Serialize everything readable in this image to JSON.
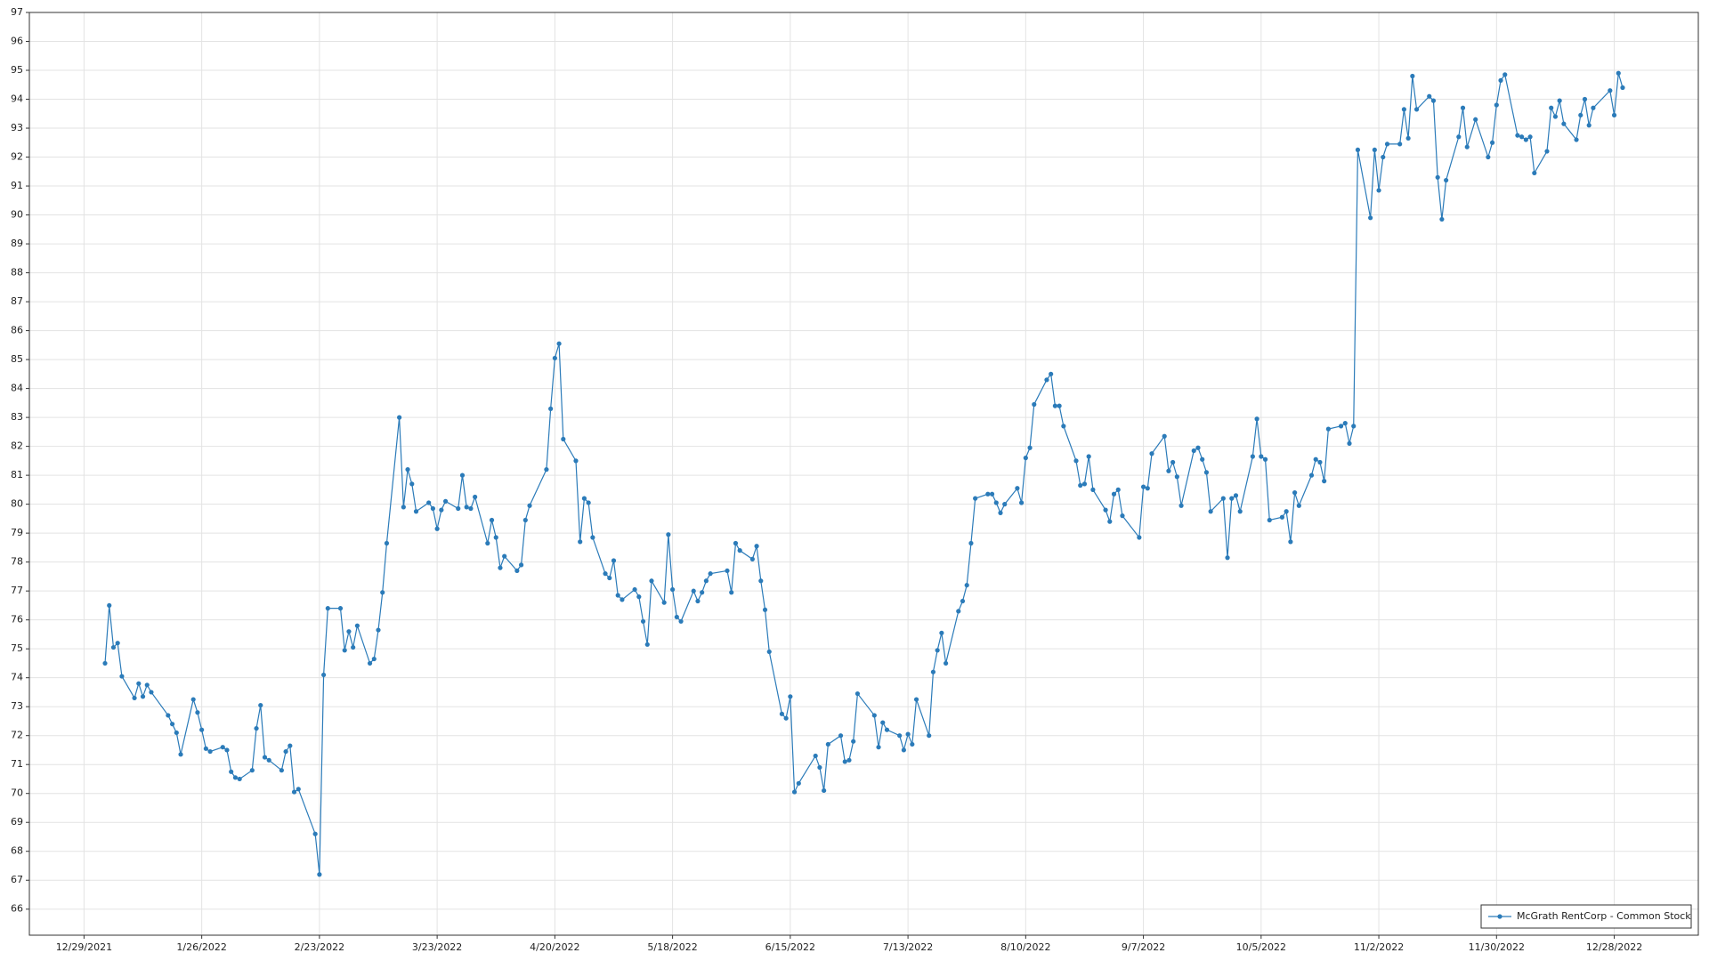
{
  "chart_data": {
    "type": "line",
    "grid": true,
    "legend": "lower right",
    "xlim": [
      "12/16/2021",
      "1/17/2023"
    ],
    "xticks": [
      "12/29/2021",
      "1/26/2022",
      "2/23/2022",
      "3/23/2022",
      "4/20/2022",
      "5/18/2022",
      "6/15/2022",
      "7/13/2022",
      "8/10/2022",
      "9/7/2022",
      "10/5/2022",
      "11/2/2022",
      "11/30/2022",
      "12/28/2022"
    ],
    "ylim": [
      65.1,
      97
    ],
    "yticks": [
      66,
      67,
      68,
      69,
      70,
      71,
      72,
      73,
      74,
      75,
      76,
      77,
      78,
      79,
      80,
      81,
      82,
      83,
      84,
      85,
      86,
      87,
      88,
      89,
      90,
      91,
      92,
      93,
      94,
      95,
      96,
      97
    ],
    "x": [
      "1/3/2022",
      "1/4/2022",
      "1/5/2022",
      "1/6/2022",
      "1/7/2022",
      "1/10/2022",
      "1/11/2022",
      "1/12/2022",
      "1/13/2022",
      "1/14/2022",
      "1/18/2022",
      "1/19/2022",
      "1/20/2022",
      "1/21/2022",
      "1/24/2022",
      "1/25/2022",
      "1/26/2022",
      "1/27/2022",
      "1/28/2022",
      "1/31/2022",
      "2/1/2022",
      "2/2/2022",
      "2/3/2022",
      "2/4/2022",
      "2/7/2022",
      "2/8/2022",
      "2/9/2022",
      "2/10/2022",
      "2/11/2022",
      "2/14/2022",
      "2/15/2022",
      "2/16/2022",
      "2/17/2022",
      "2/18/2022",
      "2/22/2022",
      "2/23/2022",
      "2/24/2022",
      "2/25/2022",
      "2/28/2022",
      "3/1/2022",
      "3/2/2022",
      "3/3/2022",
      "3/4/2022",
      "3/7/2022",
      "3/8/2022",
      "3/9/2022",
      "3/10/2022",
      "3/11/2022",
      "3/14/2022",
      "3/15/2022",
      "3/16/2022",
      "3/17/2022",
      "3/18/2022",
      "3/21/2022",
      "3/22/2022",
      "3/23/2022",
      "3/24/2022",
      "3/25/2022",
      "3/28/2022",
      "3/29/2022",
      "3/30/2022",
      "3/31/2022",
      "4/1/2022",
      "4/4/2022",
      "4/5/2022",
      "4/6/2022",
      "4/7/2022",
      "4/8/2022",
      "4/11/2022",
      "4/12/2022",
      "4/13/2022",
      "4/14/2022",
      "4/18/2022",
      "4/19/2022",
      "4/20/2022",
      "4/21/2022",
      "4/22/2022",
      "4/25/2022",
      "4/26/2022",
      "4/27/2022",
      "4/28/2022",
      "4/29/2022",
      "5/2/2022",
      "5/3/2022",
      "5/4/2022",
      "5/5/2022",
      "5/6/2022",
      "5/9/2022",
      "5/10/2022",
      "5/11/2022",
      "5/12/2022",
      "5/13/2022",
      "5/16/2022",
      "5/17/2022",
      "5/18/2022",
      "5/19/2022",
      "5/20/2022",
      "5/23/2022",
      "5/24/2022",
      "5/25/2022",
      "5/26/2022",
      "5/27/2022",
      "5/31/2022",
      "6/1/2022",
      "6/2/2022",
      "6/3/2022",
      "6/6/2022",
      "6/7/2022",
      "6/8/2022",
      "6/9/2022",
      "6/10/2022",
      "6/13/2022",
      "6/14/2022",
      "6/15/2022",
      "6/16/2022",
      "6/17/2022",
      "6/21/2022",
      "6/22/2022",
      "6/23/2022",
      "6/24/2022",
      "6/27/2022",
      "6/28/2022",
      "6/29/2022",
      "6/30/2022",
      "7/1/2022",
      "7/5/2022",
      "7/6/2022",
      "7/7/2022",
      "7/8/2022",
      "7/11/2022",
      "7/12/2022",
      "7/13/2022",
      "7/14/2022",
      "7/15/2022",
      "7/18/2022",
      "7/19/2022",
      "7/20/2022",
      "7/21/2022",
      "7/22/2022",
      "7/25/2022",
      "7/26/2022",
      "7/27/2022",
      "7/28/2022",
      "7/29/2022",
      "8/1/2022",
      "8/2/2022",
      "8/3/2022",
      "8/4/2022",
      "8/5/2022",
      "8/8/2022",
      "8/9/2022",
      "8/10/2022",
      "8/11/2022",
      "8/12/2022",
      "8/15/2022",
      "8/16/2022",
      "8/17/2022",
      "8/18/2022",
      "8/19/2022",
      "8/22/2022",
      "8/23/2022",
      "8/24/2022",
      "8/25/2022",
      "8/26/2022",
      "8/29/2022",
      "8/30/2022",
      "8/31/2022",
      "9/1/2022",
      "9/2/2022",
      "9/6/2022",
      "9/7/2022",
      "9/8/2022",
      "9/9/2022",
      "9/12/2022",
      "9/13/2022",
      "9/14/2022",
      "9/15/2022",
      "9/16/2022",
      "9/19/2022",
      "9/20/2022",
      "9/21/2022",
      "9/22/2022",
      "9/23/2022",
      "9/26/2022",
      "9/27/2022",
      "9/28/2022",
      "9/29/2022",
      "9/30/2022",
      "10/3/2022",
      "10/4/2022",
      "10/5/2022",
      "10/6/2022",
      "10/7/2022",
      "10/10/2022",
      "10/11/2022",
      "10/12/2022",
      "10/13/2022",
      "10/14/2022",
      "10/17/2022",
      "10/18/2022",
      "10/19/2022",
      "10/20/2022",
      "10/21/2022",
      "10/24/2022",
      "10/25/2022",
      "10/26/2022",
      "10/27/2022",
      "10/28/2022",
      "10/31/2022",
      "11/1/2022",
      "11/2/2022",
      "11/3/2022",
      "11/4/2022",
      "11/7/2022",
      "11/8/2022",
      "11/9/2022",
      "11/10/2022",
      "11/11/2022",
      "11/14/2022",
      "11/15/2022",
      "11/16/2022",
      "11/17/2022",
      "11/18/2022",
      "11/21/2022",
      "11/22/2022",
      "11/23/2022",
      "11/25/2022",
      "11/28/2022",
      "11/29/2022",
      "11/30/2022",
      "12/1/2022",
      "12/2/2022",
      "12/5/2022",
      "12/6/2022",
      "12/7/2022",
      "12/8/2022",
      "12/9/2022",
      "12/12/2022",
      "12/13/2022",
      "12/14/2022",
      "12/15/2022",
      "12/16/2022",
      "12/19/2022",
      "12/20/2022",
      "12/21/2022",
      "12/22/2022",
      "12/23/2022",
      "12/27/2022",
      "12/28/2022",
      "12/29/2022",
      "12/30/2022"
    ],
    "series": [
      {
        "name": "McGrath RentCorp - Common Stock",
        "color": "#2b7bb9",
        "values": [
          74.5,
          76.5,
          75.05,
          75.2,
          74.05,
          73.3,
          73.8,
          73.35,
          73.75,
          73.5,
          72.7,
          72.4,
          72.1,
          71.35,
          73.25,
          72.8,
          72.2,
          71.55,
          71.45,
          71.6,
          71.5,
          70.75,
          70.55,
          70.5,
          70.8,
          72.25,
          73.05,
          71.25,
          71.15,
          70.8,
          71.45,
          71.65,
          70.05,
          70.15,
          68.6,
          67.2,
          74.1,
          76.4,
          76.4,
          74.95,
          75.6,
          75.05,
          75.8,
          74.5,
          74.65,
          75.65,
          76.95,
          78.65,
          83.0,
          79.9,
          81.2,
          80.7,
          79.75,
          80.05,
          79.85,
          79.15,
          79.8,
          80.1,
          79.85,
          81.0,
          79.9,
          79.85,
          80.25,
          78.65,
          79.45,
          78.85,
          77.8,
          78.2,
          77.7,
          77.9,
          79.45,
          79.95,
          81.2,
          83.3,
          85.05,
          85.55,
          82.25,
          81.5,
          78.7,
          80.2,
          80.05,
          78.85,
          77.6,
          77.45,
          78.05,
          76.85,
          76.7,
          77.05,
          76.8,
          75.95,
          75.15,
          77.35,
          76.6,
          78.95,
          77.05,
          76.1,
          75.95,
          77.0,
          76.65,
          76.95,
          77.35,
          77.6,
          77.7,
          76.95,
          78.65,
          78.4,
          78.1,
          78.55,
          77.35,
          76.35,
          74.9,
          72.75,
          72.6,
          73.35,
          70.05,
          70.35,
          71.3,
          70.9,
          70.1,
          71.7,
          72.0,
          71.1,
          71.15,
          71.8,
          73.45,
          72.7,
          71.6,
          72.45,
          72.2,
          72.0,
          71.5,
          72.05,
          71.7,
          73.25,
          72.0,
          74.2,
          74.95,
          75.55,
          74.5,
          76.3,
          76.65,
          77.2,
          78.65,
          80.2,
          80.35,
          80.35,
          80.05,
          79.7,
          80.0,
          80.55,
          80.05,
          81.6,
          81.95,
          83.45,
          84.3,
          84.5,
          83.4,
          83.4,
          82.7,
          81.5,
          80.65,
          80.7,
          81.65,
          80.5,
          79.8,
          79.4,
          80.35,
          80.5,
          79.6,
          78.85,
          80.6,
          80.55,
          81.75,
          82.35,
          81.15,
          81.45,
          80.95,
          79.95,
          81.85,
          81.95,
          81.55,
          81.1,
          79.75,
          80.2,
          78.15,
          80.2,
          80.3,
          79.75,
          81.65,
          82.95,
          81.65,
          81.55,
          79.45,
          79.55,
          79.75,
          78.7,
          80.4,
          79.95,
          81.0,
          81.55,
          81.45,
          80.8,
          82.6,
          82.7,
          82.8,
          82.1,
          82.7,
          92.25,
          89.9,
          92.25,
          90.85,
          92.0,
          92.45,
          92.45,
          93.65,
          92.65,
          94.8,
          93.65,
          94.1,
          93.95,
          91.3,
          89.85,
          91.2,
          92.7,
          93.7,
          92.35,
          93.3,
          92.0,
          92.5,
          93.8,
          94.65,
          94.85,
          92.75,
          92.7,
          92.6,
          92.7,
          91.45,
          92.2,
          93.7,
          93.4,
          93.95,
          93.15,
          92.6,
          93.45,
          94.0,
          93.1,
          93.7,
          94.3,
          93.45,
          94.9,
          94.4
        ]
      }
    ]
  }
}
